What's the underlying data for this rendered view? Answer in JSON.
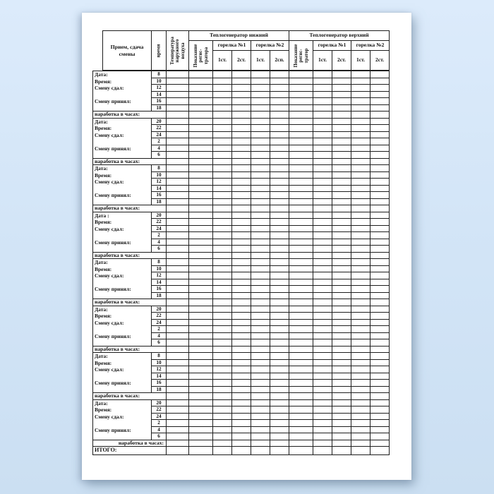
{
  "page": {
    "background_color": "#d3e5f7",
    "paper_color": "#ffffff",
    "border_color": "#1d1d1d"
  },
  "table": {
    "header": {
      "shift_column_title": "Прием, сдача\nсмены",
      "time_column_title": "время",
      "temperature_column_title": "Температура\nнаружного\nвоздуха",
      "generators": [
        {
          "title": "Теплогенератор нижний",
          "recorder_label": "Показание\nрегис-\nтратора",
          "burners": [
            {
              "title": "горелка №1",
              "stages": [
                "1ст.",
                "2ст."
              ]
            },
            {
              "title": "горелка №2",
              "stages": [
                "1ст.",
                "2сп."
              ]
            }
          ]
        },
        {
          "title": "Теплогенератор верхний",
          "recorder_label": "Показание\nрегис-\nтратор",
          "burners": [
            {
              "title": "горелка №1",
              "stages": [
                "1ст.",
                "2ст."
              ]
            },
            {
              "title": "горелка №2",
              "stages": [
                "1ст.",
                "2ст."
              ]
            }
          ]
        }
      ]
    },
    "worklog_label": "наработка в часах:",
    "blocks": [
      {
        "labels": [
          "Дата:",
          "Время:",
          "Смену сдал:",
          "",
          "Смену принял:",
          ""
        ],
        "times": [
          "8",
          "10",
          "12",
          "14",
          "16",
          "18"
        ],
        "worklog_label": "наработка в часах:"
      },
      {
        "labels": [
          "Дата:",
          "Время:",
          "Смену сдал:",
          "",
          "Смену принял:",
          ""
        ],
        "times": [
          "20",
          "22",
          "24",
          "2",
          "4",
          "6"
        ],
        "worklog_label": "наработка в часах:"
      },
      {
        "labels": [
          "Дата:",
          "Время:",
          "Смену сдал:",
          "",
          "Смену принял:",
          ""
        ],
        "times": [
          "8",
          "10",
          "12",
          "14",
          "16",
          "18"
        ],
        "worklog_label": "наработка в часах:"
      },
      {
        "labels": [
          "Дата :",
          "Время:",
          "Смену сдал:",
          "",
          "Смену принял:",
          ""
        ],
        "times": [
          "20",
          "22",
          "24",
          "2",
          "4",
          "6"
        ],
        "worklog_label": "наработка в часах:"
      },
      {
        "labels": [
          "Дата:",
          "Время:",
          "Смену сдал:",
          "",
          "Смену принял:",
          ""
        ],
        "times": [
          "8",
          "10",
          "12",
          "14",
          "16",
          "18"
        ],
        "worklog_label": "наработка в часах:"
      },
      {
        "labels": [
          "Дата:",
          "Время:",
          "Смену сдал:",
          "",
          "Смену принял:",
          ""
        ],
        "times": [
          "20",
          "22",
          "24",
          "2",
          "4",
          "6"
        ],
        "worklog_label": "наработка в часах:"
      },
      {
        "labels": [
          "Дата:",
          "Время:",
          "Смену сдал:",
          "",
          "Смену принял:",
          ""
        ],
        "times": [
          "8",
          "10",
          "12",
          "14",
          "16",
          "18"
        ],
        "worklog_label": "наработка в часах:"
      },
      {
        "labels": [
          "Дата:",
          "Время:",
          "Смену сдал:",
          "",
          "Смену принял:",
          ""
        ],
        "times": [
          "20",
          "22",
          "24",
          "2",
          "4",
          "6"
        ]
      }
    ],
    "footer": {
      "worklog_label": "наработка в часах:",
      "total_label": "ИТОГО:"
    }
  }
}
